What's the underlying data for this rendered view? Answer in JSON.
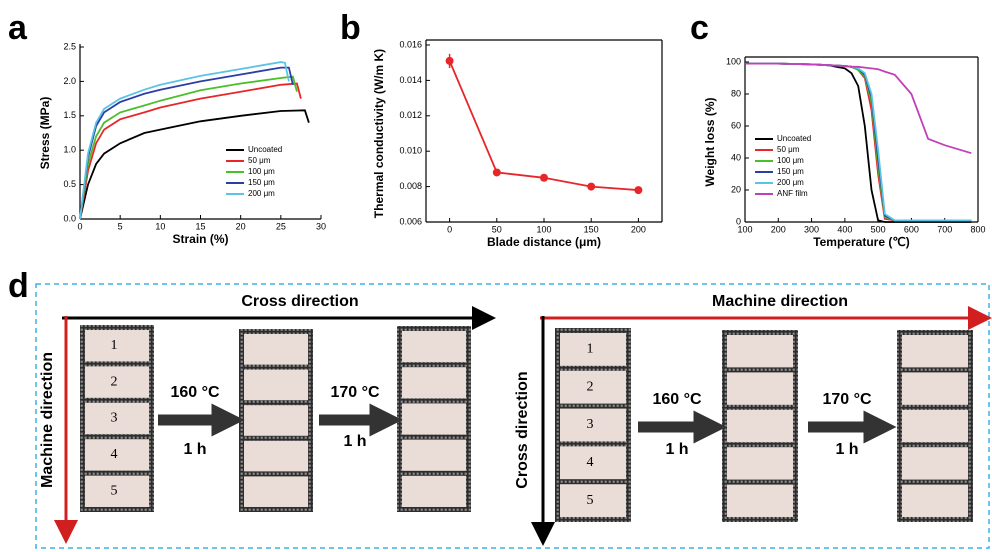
{
  "chart_data": [
    {
      "type": "line",
      "panel_label": "a",
      "xlabel": "Strain (%)",
      "ylabel": "Stress (MPa)",
      "xlim": [
        0,
        30
      ],
      "xticks": [
        0,
        5,
        10,
        15,
        20,
        25,
        30
      ],
      "ylim": [
        0,
        2.5
      ],
      "yticks": [
        {
          "value": 0,
          "label": "0.0"
        },
        0.5,
        {
          "value": 1,
          "label": "1.0"
        },
        1.5,
        {
          "value": 2,
          "label": "2.0"
        },
        2.5
      ],
      "box": false,
      "legend": "lower right",
      "series": [
        {
          "name": "Uncoated",
          "color": "#000000",
          "x": [
            0,
            1,
            2,
            3,
            5,
            8,
            10,
            15,
            20,
            25,
            28,
            28.5
          ],
          "values": [
            0,
            0.5,
            0.8,
            0.95,
            1.1,
            1.25,
            1.3,
            1.42,
            1.5,
            1.57,
            1.58,
            1.4
          ]
        },
        {
          "name": "50 μm",
          "color": "#e8262a",
          "x": [
            0,
            1,
            2,
            3,
            5,
            8,
            10,
            15,
            20,
            25,
            27,
            27.5
          ],
          "values": [
            0,
            0.7,
            1.1,
            1.3,
            1.45,
            1.55,
            1.62,
            1.75,
            1.85,
            1.95,
            1.97,
            1.75
          ]
        },
        {
          "name": "100 μm",
          "color": "#4bbf2a",
          "x": [
            0,
            1,
            2,
            3,
            5,
            8,
            10,
            15,
            20,
            25,
            26.5,
            27
          ],
          "values": [
            0,
            0.8,
            1.2,
            1.4,
            1.55,
            1.65,
            1.72,
            1.87,
            1.97,
            2.05,
            2.07,
            1.85
          ]
        },
        {
          "name": "150 μm",
          "color": "#2b3ea8",
          "x": [
            0,
            1,
            2,
            3,
            5,
            8,
            10,
            15,
            20,
            25,
            26,
            26.5
          ],
          "values": [
            0,
            0.9,
            1.35,
            1.55,
            1.7,
            1.82,
            1.88,
            2.0,
            2.1,
            2.2,
            2.2,
            1.95
          ]
        },
        {
          "name": "200 μm",
          "color": "#5bc3e5",
          "x": [
            0,
            1,
            2,
            3,
            5,
            8,
            10,
            15,
            20,
            25,
            25.5,
            26
          ],
          "values": [
            0,
            0.95,
            1.4,
            1.6,
            1.75,
            1.88,
            1.95,
            2.08,
            2.18,
            2.28,
            2.27,
            2.0
          ]
        }
      ]
    },
    {
      "type": "errorline",
      "panel_label": "b",
      "xlabel": "Blade distance (μm)",
      "ylabel": "Thermal conductivity (W/m K)",
      "x": [
        0,
        50,
        100,
        150,
        200
      ],
      "xlim": [
        -25,
        225
      ],
      "xticks": [
        0,
        50,
        100,
        150,
        200
      ],
      "ylim": [
        0.006,
        0.016
      ],
      "yticks": [
        0.006,
        0.008,
        {
          "value": 0.01,
          "label": "0.010"
        },
        0.012,
        0.014,
        0.016
      ],
      "box": true,
      "series": [
        {
          "color": "#e8262a",
          "values": [
            0.0151,
            0.0088,
            0.0085,
            0.008,
            0.0078
          ],
          "errors": [
            0.0004,
            0.0002,
            0.0002,
            0.0002,
            0.0002
          ]
        }
      ]
    },
    {
      "type": "line",
      "panel_label": "c",
      "xlabel": "Temperature (℃)",
      "ylabel": "Weight loss (%)",
      "xlim": [
        100,
        800
      ],
      "xticks": [
        100,
        200,
        300,
        400,
        500,
        600,
        700,
        800
      ],
      "ylim": [
        0,
        100
      ],
      "yticks": [
        0,
        20,
        40,
        60,
        80,
        100
      ],
      "box": true,
      "legend": "center left",
      "series": [
        {
          "name": "Uncoated",
          "color": "#000000",
          "x": [
            100,
            200,
            300,
            350,
            400,
            420,
            440,
            460,
            480,
            500,
            520,
            550,
            600,
            650,
            700,
            780
          ],
          "values": [
            99,
            99,
            98.5,
            98,
            96,
            93,
            85,
            60,
            20,
            1,
            0,
            0,
            0,
            0,
            0,
            0
          ]
        },
        {
          "name": "50 μm",
          "color": "#e8262a",
          "x": [
            100,
            200,
            300,
            350,
            400,
            420,
            440,
            460,
            480,
            500,
            520,
            550,
            600,
            650,
            700,
            780
          ],
          "values": [
            99,
            99,
            98.5,
            98,
            97.5,
            97,
            95,
            90,
            70,
            30,
            2,
            1,
            1,
            1,
            1,
            1
          ]
        },
        {
          "name": "100 μm",
          "color": "#4bbf2a",
          "x": [
            100,
            200,
            300,
            350,
            400,
            420,
            440,
            460,
            480,
            500,
            520,
            550,
            600,
            650,
            700,
            780
          ],
          "values": [
            99,
            99,
            98.5,
            98,
            97.5,
            97,
            95,
            91,
            75,
            35,
            3,
            1,
            1,
            1,
            1,
            1
          ]
        },
        {
          "name": "150 μm",
          "color": "#2b3ea8",
          "x": [
            100,
            200,
            300,
            350,
            400,
            420,
            440,
            460,
            480,
            500,
            520,
            550,
            600,
            650,
            700,
            780
          ],
          "values": [
            99,
            99,
            98.5,
            98,
            97.5,
            97,
            96,
            92,
            78,
            40,
            4,
            1,
            1,
            1,
            1,
            1
          ]
        },
        {
          "name": "200 μm",
          "color": "#5bc3e5",
          "x": [
            100,
            200,
            300,
            350,
            400,
            420,
            440,
            460,
            480,
            500,
            520,
            550,
            600,
            650,
            700,
            780
          ],
          "values": [
            99,
            99,
            98.5,
            98,
            97.5,
            97,
            96,
            93,
            80,
            45,
            5,
            1,
            1,
            1,
            1,
            1
          ]
        },
        {
          "name": "ANF film",
          "color": "#c23fba",
          "x": [
            100,
            200,
            300,
            350,
            400,
            420,
            440,
            460,
            480,
            500,
            520,
            550,
            600,
            650,
            700,
            780
          ],
          "values": [
            99,
            99,
            98.5,
            98,
            97.5,
            97,
            97,
            96.5,
            96,
            95.5,
            94,
            92,
            80,
            52,
            48,
            43
          ]
        }
      ]
    }
  ],
  "panel_d": {
    "panel_label": "d",
    "left": {
      "top_axis": "Cross direction",
      "side_axis": "Machine direction",
      "sample_numbers": [
        "1",
        "2",
        "3",
        "4",
        "5"
      ],
      "steps": [
        {
          "temp": "160 °C",
          "time": "1 h"
        },
        {
          "temp": "170 °C",
          "time": "1 h"
        }
      ]
    },
    "right": {
      "top_axis": "Machine direction",
      "side_axis": "Cross direction",
      "sample_numbers": [
        "1",
        "2",
        "3",
        "4",
        "5"
      ],
      "steps": [
        {
          "temp": "160 °C",
          "time": "1 h"
        },
        {
          "temp": "170 °C",
          "time": "1 h"
        }
      ]
    }
  }
}
